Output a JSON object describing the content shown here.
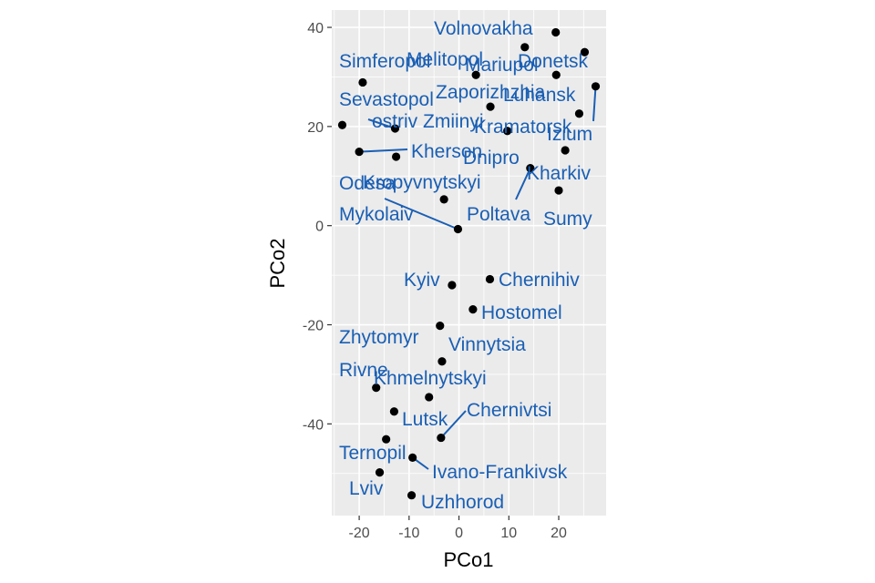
{
  "chart_data": {
    "type": "scatter",
    "xlabel": "PCo1",
    "ylabel": "PCo2",
    "xlim": [
      -25.5,
      29.5
    ],
    "ylim": [
      -58.5,
      43.5
    ],
    "x_ticks": [
      -20,
      -10,
      0,
      10,
      20
    ],
    "y_ticks": [
      -40,
      -20,
      0,
      20,
      40
    ],
    "grid": true,
    "point_color": "#000000",
    "label_color": "#1a5fb4",
    "points": [
      {
        "name": "Volnovakha",
        "x": 19.4,
        "y": 39.0
      },
      {
        "name": "Donetsk",
        "x": 25.2,
        "y": 35.0
      },
      {
        "name": "Mariupol",
        "x": 13.2,
        "y": 36.0
      },
      {
        "name": "Melitopol",
        "x": 3.4,
        "y": 30.4
      },
      {
        "name": "Simferopol",
        "x": -19.3,
        "y": 28.9
      },
      {
        "name": "Luhansk",
        "x": 19.5,
        "y": 30.4
      },
      {
        "name": "Izium",
        "x": 27.4,
        "y": 28.1
      },
      {
        "name": "Zaporizhzhia",
        "x": 6.3,
        "y": 24.0
      },
      {
        "name": "Kramatorsk",
        "x": 24.1,
        "y": 22.6
      },
      {
        "name": "Sevastopol",
        "x": -23.4,
        "y": 20.3
      },
      {
        "name": "ostriv Zmiinyi",
        "x": -12.8,
        "y": 19.6
      },
      {
        "name": "Dnipro",
        "x": 9.7,
        "y": 19.1
      },
      {
        "name": "Kherson",
        "x": -20.0,
        "y": 14.9
      },
      {
        "name": "Odesa",
        "x": -12.6,
        "y": 13.9
      },
      {
        "name": "Kharkiv",
        "x": 21.3,
        "y": 15.2
      },
      {
        "name": "Poltava",
        "x": 14.3,
        "y": 11.6
      },
      {
        "name": "Sumy",
        "x": 20.0,
        "y": 7.1
      },
      {
        "name": "Kropyvnytskyi",
        "x": -3.0,
        "y": 5.3
      },
      {
        "name": "Mykolaiv",
        "x": -0.2,
        "y": -0.7
      },
      {
        "name": "Chernihiv",
        "x": 6.2,
        "y": -10.8
      },
      {
        "name": "Kyiv",
        "x": -1.4,
        "y": -12.0
      },
      {
        "name": "Hostomel",
        "x": 2.8,
        "y": -16.9
      },
      {
        "name": "Zhytomyr",
        "x": -3.8,
        "y": -20.2
      },
      {
        "name": "Vinnytsia",
        "x": -3.4,
        "y": -27.4
      },
      {
        "name": "Rivne",
        "x": -16.6,
        "y": -32.7
      },
      {
        "name": "Khmelnytskyi",
        "x": -6.0,
        "y": -34.6
      },
      {
        "name": "Lutsk",
        "x": -13.0,
        "y": -37.5
      },
      {
        "name": "Chernivtsi",
        "x": -3.6,
        "y": -42.8
      },
      {
        "name": "Ternopil",
        "x": -14.6,
        "y": -43.1
      },
      {
        "name": "Ivano-Frankivsk",
        "x": -9.3,
        "y": -46.8
      },
      {
        "name": "Lviv",
        "x": -15.9,
        "y": -49.8
      },
      {
        "name": "Uzhhorod",
        "x": -9.5,
        "y": -54.4
      }
    ]
  }
}
